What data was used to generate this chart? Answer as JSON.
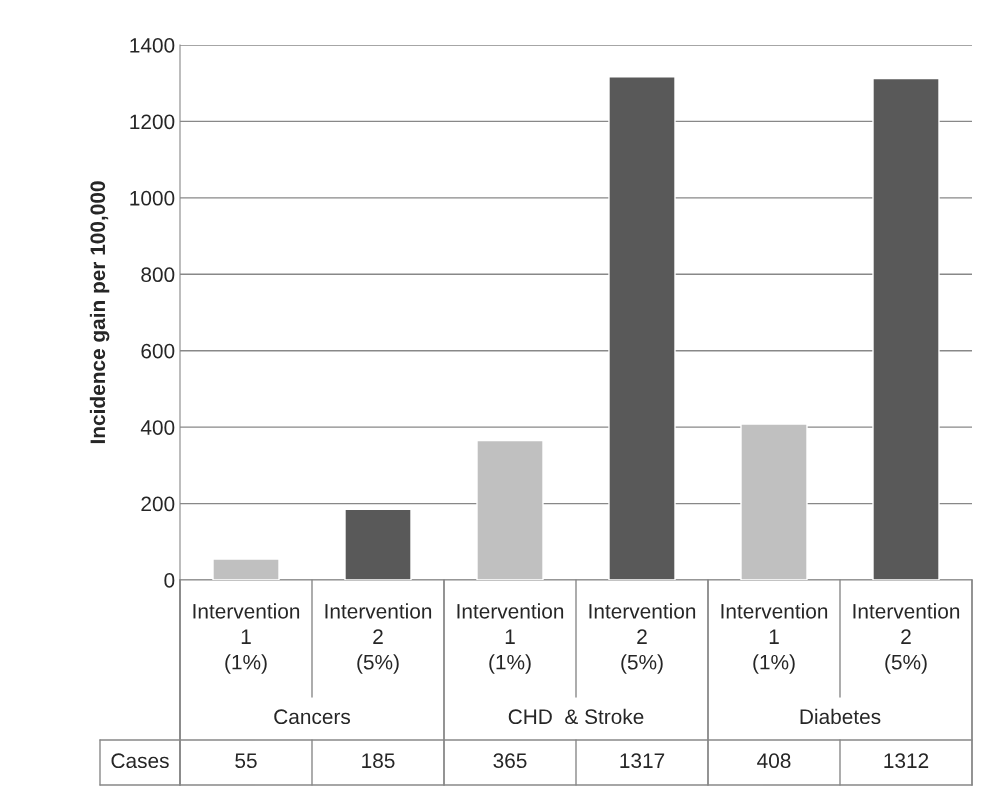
{
  "chart_data": {
    "type": "bar",
    "ylabel": "Incidence gain per 100,000",
    "categories": [
      "Intervention 1 (1%)",
      "Intervention 2 (5%)",
      "Intervention 1 (1%)",
      "Intervention 2 (5%)",
      "Intervention 1 (1%)",
      "Intervention 2 (5%)"
    ],
    "values": [
      55,
      185,
      365,
      1317,
      408,
      1312
    ],
    "colors": [
      "#c0c0c0",
      "#595959",
      "#c0c0c0",
      "#595959",
      "#c0c0c0",
      "#595959"
    ],
    "ylim": [
      0,
      1400
    ],
    "yticks": [
      0,
      200,
      400,
      600,
      800,
      1000,
      1200,
      1400
    ],
    "grid": "y",
    "data_labels": true,
    "annotations": [
      "Cancers",
      "CHD  & Stroke",
      "Diabetes",
      "Cases"
    ]
  }
}
